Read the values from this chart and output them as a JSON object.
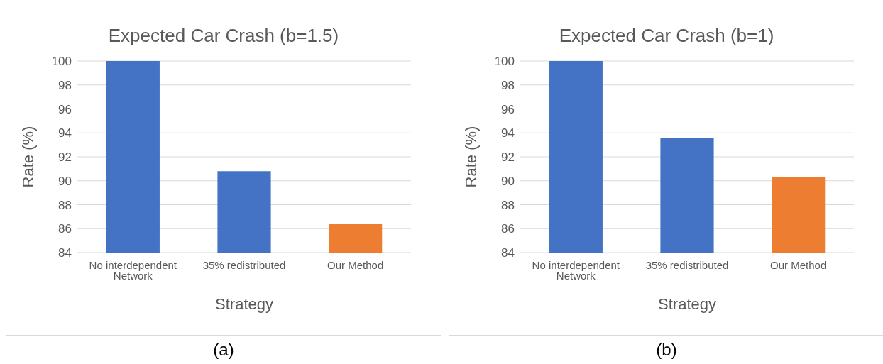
{
  "chart_data": [
    {
      "type": "bar",
      "title": "Expected Car Crash (b=1.5)",
      "xlabel": "Strategy",
      "ylabel": "Rate (%)",
      "categories": [
        "No interdependent Network",
        "35% redistributed",
        "Our Method"
      ],
      "values": [
        100,
        90.8,
        86.4
      ],
      "colors": [
        "#4472c4",
        "#4472c4",
        "#ed7d31"
      ],
      "ylim": [
        84,
        100
      ],
      "yticks": [
        84,
        86,
        88,
        90,
        92,
        94,
        96,
        98,
        100
      ],
      "grid": "y",
      "annotations": [
        "(a)"
      ]
    },
    {
      "type": "bar",
      "title": "Expected Car Crash (b=1)",
      "xlabel": "Strategy",
      "ylabel": "Rate (%)",
      "categories": [
        "No interdependent Network",
        "35% redistributed",
        "Our Method"
      ],
      "values": [
        100,
        93.6,
        90.3
      ],
      "colors": [
        "#4472c4",
        "#4472c4",
        "#ed7d31"
      ],
      "ylim": [
        84,
        100
      ],
      "yticks": [
        84,
        86,
        88,
        90,
        92,
        94,
        96,
        98,
        100
      ],
      "grid": "y",
      "annotations": [
        "(b)"
      ]
    }
  ]
}
